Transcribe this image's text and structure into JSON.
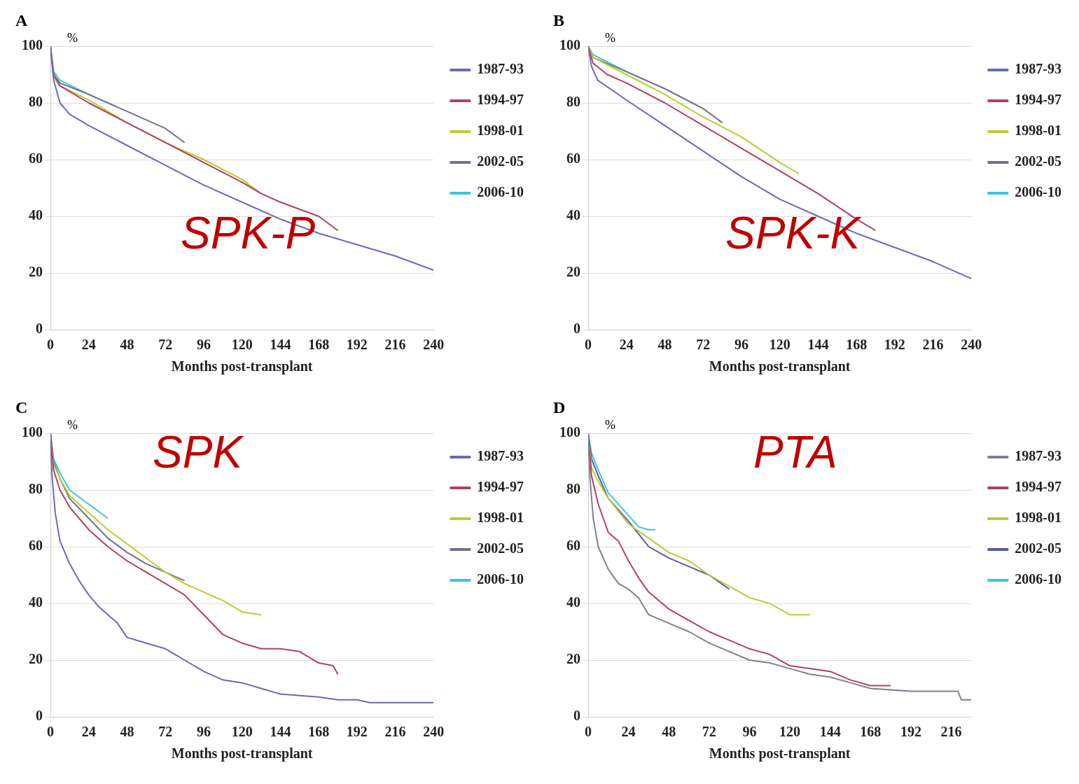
{
  "chart_data": [
    {
      "type": "line",
      "title": "A",
      "ylabel": "%",
      "xlabel": "Months post-transplant",
      "annotations": [
        "SPK-P"
      ],
      "xlim": [
        0,
        240
      ],
      "xticks": [
        0,
        24,
        48,
        72,
        96,
        120,
        144,
        168,
        192,
        216,
        240
      ],
      "ylim": [
        0,
        100
      ],
      "yticks": [
        0,
        20,
        40,
        60,
        80,
        100
      ],
      "grid": "y",
      "legend": "top right",
      "series": [
        {
          "name": "1987-93",
          "color": "#6a6ab8",
          "x": [
            0,
            2,
            6,
            12,
            24,
            48,
            72,
            96,
            120,
            144,
            168,
            192,
            216,
            240
          ],
          "values": [
            100,
            88,
            80,
            76,
            72,
            65,
            58,
            51,
            45,
            39,
            34,
            30,
            26,
            21
          ]
        },
        {
          "name": "1994-97",
          "color": "#b0406a",
          "x": [
            0,
            2,
            6,
            24,
            48,
            72,
            96,
            120,
            132,
            144,
            168,
            180
          ],
          "values": [
            100,
            90,
            86,
            80,
            73,
            66,
            59,
            52,
            48,
            45,
            40,
            35
          ]
        },
        {
          "name": "1998-01",
          "color": "#bccc30",
          "x": [
            0,
            2,
            6,
            24,
            48,
            72,
            96,
            120,
            132
          ],
          "values": [
            100,
            89,
            86,
            81,
            73,
            66,
            60,
            53,
            48
          ]
        },
        {
          "name": "2002-05",
          "color": "#707090",
          "x": [
            0,
            2,
            6,
            24,
            48,
            72,
            84
          ],
          "values": [
            100,
            90,
            87,
            83,
            77,
            71,
            66
          ]
        },
        {
          "name": "2006-10",
          "color": "#40c4d4",
          "x": [
            0,
            2,
            6,
            24,
            40
          ],
          "values": [
            100,
            91,
            88,
            83,
            79
          ]
        }
      ]
    },
    {
      "type": "line",
      "title": "B",
      "ylabel": "%",
      "xlabel": "Months post-transplant",
      "annotations": [
        "SPK-K"
      ],
      "xlim": [
        0,
        240
      ],
      "xticks": [
        0,
        24,
        48,
        72,
        96,
        120,
        144,
        168,
        192,
        216,
        240
      ],
      "ylim": [
        0,
        100
      ],
      "yticks": [
        0,
        20,
        40,
        60,
        80,
        100
      ],
      "grid": "y",
      "legend": "top right",
      "series": [
        {
          "name": "1987-93",
          "color": "#6a6ab8",
          "x": [
            0,
            2,
            6,
            24,
            48,
            72,
            96,
            120,
            144,
            168,
            192,
            216,
            240
          ],
          "values": [
            100,
            93,
            88,
            81,
            72,
            63,
            54,
            46,
            40,
            34,
            29,
            24,
            18
          ]
        },
        {
          "name": "1994-97",
          "color": "#b0406a",
          "x": [
            0,
            3,
            12,
            24,
            48,
            72,
            96,
            120,
            144,
            168,
            180
          ],
          "values": [
            100,
            94,
            90,
            87,
            80,
            72,
            64,
            56,
            48,
            39,
            35
          ]
        },
        {
          "name": "1998-01",
          "color": "#bccc30",
          "x": [
            0,
            3,
            24,
            48,
            72,
            96,
            120,
            132
          ],
          "values": [
            100,
            96,
            90,
            83,
            75,
            68,
            59,
            55
          ]
        },
        {
          "name": "2002-05",
          "color": "#707090",
          "x": [
            0,
            3,
            24,
            48,
            72,
            84
          ],
          "values": [
            100,
            96,
            91,
            85,
            78,
            73
          ]
        },
        {
          "name": "2006-10",
          "color": "#40c4d4",
          "x": [
            0,
            3,
            24,
            36
          ],
          "values": [
            100,
            97,
            91,
            88
          ]
        }
      ]
    },
    {
      "type": "line",
      "title": "C",
      "ylabel": "%",
      "xlabel": "Months post-transplant",
      "annotations": [
        "SPK"
      ],
      "xlim": [
        0,
        240
      ],
      "xticks": [
        0,
        24,
        48,
        72,
        96,
        120,
        144,
        168,
        192,
        216,
        240
      ],
      "ylim": [
        0,
        100
      ],
      "yticks": [
        0,
        20,
        40,
        60,
        80,
        100
      ],
      "grid": "y",
      "legend": "top right",
      "series": [
        {
          "name": "1987-93",
          "color": "#6a6ab8",
          "x": [
            0,
            1,
            3,
            6,
            12,
            18,
            24,
            30,
            36,
            42,
            48,
            60,
            72,
            84,
            96,
            108,
            120,
            132,
            144,
            168,
            180,
            192,
            200,
            240
          ],
          "values": [
            100,
            85,
            72,
            62,
            54,
            48,
            43,
            39,
            36,
            33,
            28,
            26,
            24,
            20,
            16,
            13,
            12,
            10,
            8,
            7,
            6,
            6,
            5,
            5
          ]
        },
        {
          "name": "1994-97",
          "color": "#b0406a",
          "x": [
            0,
            2,
            6,
            12,
            18,
            24,
            36,
            48,
            60,
            72,
            84,
            96,
            108,
            120,
            132,
            144,
            156,
            168,
            177,
            180
          ],
          "values": [
            100,
            87,
            80,
            74,
            70,
            66,
            60,
            55,
            51,
            47,
            43,
            36,
            29,
            26,
            24,
            24,
            23,
            19,
            18,
            15
          ]
        },
        {
          "name": "1998-01",
          "color": "#bccc30",
          "x": [
            0,
            2,
            6,
            12,
            24,
            36,
            48,
            60,
            72,
            84,
            96,
            108,
            120,
            132
          ],
          "values": [
            100,
            89,
            84,
            78,
            72,
            66,
            61,
            56,
            51,
            47,
            44,
            41,
            37,
            36
          ]
        },
        {
          "name": "2002-05",
          "color": "#707090",
          "x": [
            0,
            2,
            6,
            12,
            24,
            36,
            48,
            60,
            72,
            84
          ],
          "values": [
            100,
            90,
            84,
            77,
            70,
            63,
            58,
            54,
            51,
            48
          ]
        },
        {
          "name": "2006-10",
          "color": "#40c4d4",
          "x": [
            0,
            2,
            6,
            12,
            24,
            36
          ],
          "values": [
            100,
            91,
            86,
            80,
            75,
            70
          ]
        }
      ]
    },
    {
      "type": "line",
      "title": "D",
      "ylabel": "%",
      "xlabel": "Months post-transplant",
      "annotations": [
        "PTA"
      ],
      "xlim": [
        0,
        228
      ],
      "xticks": [
        0,
        24,
        48,
        72,
        96,
        120,
        144,
        168,
        192,
        216
      ],
      "ylim": [
        0,
        100
      ],
      "yticks": [
        0,
        20,
        40,
        60,
        80,
        100
      ],
      "grid": "y",
      "legend": "top right",
      "series": [
        {
          "name": "1987-93",
          "color": "#808090",
          "x": [
            0,
            1,
            3,
            6,
            12,
            18,
            24,
            30,
            36,
            48,
            60,
            72,
            84,
            96,
            108,
            120,
            132,
            144,
            156,
            168,
            192,
            220,
            222,
            228
          ],
          "values": [
            100,
            85,
            70,
            60,
            52,
            47,
            45,
            42,
            36,
            33,
            30,
            26,
            23,
            20,
            19,
            17,
            15,
            14,
            12,
            10,
            9,
            9,
            6,
            6
          ]
        },
        {
          "name": "1994-97",
          "color": "#b0406a",
          "x": [
            0,
            2,
            6,
            12,
            18,
            24,
            30,
            36,
            48,
            60,
            72,
            84,
            96,
            108,
            120,
            144,
            156,
            168,
            180
          ],
          "values": [
            100,
            85,
            75,
            65,
            62,
            55,
            49,
            44,
            38,
            34,
            30,
            27,
            24,
            22,
            18,
            16,
            13,
            11,
            11
          ]
        },
        {
          "name": "1998-01",
          "color": "#bccc30",
          "x": [
            0,
            2,
            6,
            12,
            24,
            36,
            48,
            60,
            72,
            84,
            96,
            108,
            120,
            132
          ],
          "values": [
            100,
            88,
            83,
            77,
            68,
            63,
            58,
            55,
            50,
            46,
            42,
            40,
            36,
            36
          ]
        },
        {
          "name": "2002-05",
          "color": "#5a5aa8",
          "x": [
            0,
            2,
            6,
            12,
            24,
            36,
            48,
            60,
            72,
            84
          ],
          "values": [
            100,
            91,
            85,
            77,
            69,
            60,
            56,
            53,
            50,
            45
          ]
        },
        {
          "name": "2006-10",
          "color": "#40c4d4",
          "x": [
            0,
            2,
            6,
            12,
            24,
            30,
            36,
            40
          ],
          "values": [
            100,
            93,
            87,
            79,
            71,
            67,
            66,
            66
          ]
        }
      ]
    }
  ]
}
